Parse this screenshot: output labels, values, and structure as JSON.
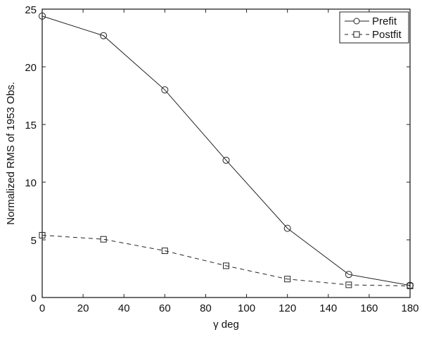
{
  "chart_data": {
    "type": "line",
    "title": "",
    "xlabel": "γ deg",
    "ylabel": "Normalized RMS of 1953 Obs.",
    "x": [
      0,
      30,
      60,
      90,
      120,
      150,
      180
    ],
    "series": [
      {
        "name": "Prefit",
        "marker": "circle",
        "linestyle": "solid",
        "values": [
          24.4,
          22.7,
          18.0,
          11.9,
          6.0,
          2.0,
          1.05
        ]
      },
      {
        "name": "Postfit",
        "marker": "square",
        "linestyle": "dashed",
        "values": [
          5.4,
          5.05,
          4.05,
          2.75,
          1.6,
          1.1,
          1.0
        ]
      }
    ],
    "xlim": [
      0,
      180
    ],
    "ylim": [
      0,
      25
    ],
    "xticks": [
      "0",
      "20",
      "40",
      "60",
      "80",
      "100",
      "120",
      "140",
      "160",
      "180"
    ],
    "yticks": [
      "0",
      "5",
      "10",
      "15",
      "20",
      "25"
    ],
    "grid": false,
    "legend_position": "upper right"
  },
  "legend": {
    "prefit": "Prefit",
    "postfit": "Postfit"
  },
  "axes": {
    "xlabel": "γ deg",
    "ylabel": "Normalized RMS of 1953 Obs."
  }
}
